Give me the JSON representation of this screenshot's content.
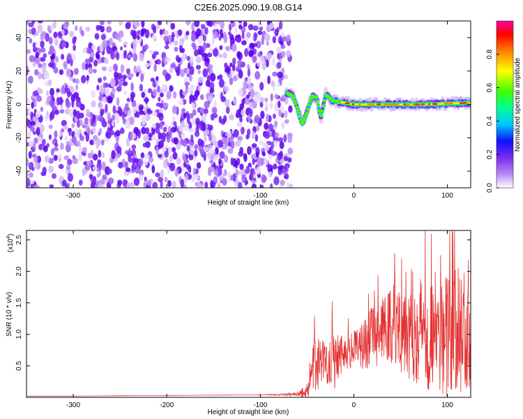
{
  "title": "C2E6.2025.090.19.08.G14",
  "colors": {
    "noise": "#7a2cf0",
    "snr_line": "#e33232"
  },
  "chart_data": [
    {
      "type": "heatmap",
      "xlabel": "Height of straight line (km)",
      "ylabel": "Frequency (Hz)",
      "xlim": [
        -350,
        125
      ],
      "ylim": [
        -50,
        50
      ],
      "xticks": [
        -300,
        -200,
        -100,
        0,
        100
      ],
      "yticks": [
        -40,
        -20,
        0,
        20,
        40
      ],
      "noise_region_x": [
        -350,
        -72
      ],
      "signal_trace": [
        {
          "x": -72,
          "y": 7
        },
        {
          "x": -65,
          "y": 5
        },
        {
          "x": -60,
          "y": -3
        },
        {
          "x": -55,
          "y": -12
        },
        {
          "x": -50,
          "y": -5
        },
        {
          "x": -45,
          "y": 5
        },
        {
          "x": -40,
          "y": 4
        },
        {
          "x": -35,
          "y": -8
        },
        {
          "x": -30,
          "y": 6
        },
        {
          "x": -25,
          "y": 3
        },
        {
          "x": -20,
          "y": 2
        },
        {
          "x": -10,
          "y": 1
        },
        {
          "x": 0,
          "y": 0
        },
        {
          "x": 25,
          "y": 0
        },
        {
          "x": 50,
          "y": 0
        },
        {
          "x": 75,
          "y": 0
        },
        {
          "x": 100,
          "y": 0.5
        },
        {
          "x": 125,
          "y": 1
        }
      ],
      "colorbar": {
        "label": "Normalized spectral amplitude",
        "ticks": [
          "0.0",
          "0.2",
          "0.4",
          "0.6",
          "0.8"
        ],
        "range": [
          0,
          1
        ]
      }
    },
    {
      "type": "line",
      "xlabel": "Height of straight line (km)",
      "ylabel": "SNR (10 * v/v)",
      "exponent_label": "(x10",
      "exponent_power": "4",
      "exponent_close": ")",
      "xlim": [
        -350,
        125
      ],
      "ylim": [
        0,
        2.65
      ],
      "xticks": [
        -300,
        -200,
        -100,
        0,
        100
      ],
      "yticks": [
        "0.5",
        "1.0",
        "1.5",
        "2.0",
        "2.5"
      ],
      "series": [
        {
          "x": [
            -350,
            -300,
            -200,
            -100,
            -60,
            -48,
            -45,
            -40,
            -35,
            -30,
            -25,
            -20,
            -15,
            -10,
            0,
            10,
            20,
            30,
            40,
            50,
            60,
            70,
            80,
            90,
            100,
            110,
            120,
            125
          ],
          "y": [
            0.02,
            0.02,
            0.03,
            0.04,
            0.05,
            0.1,
            0.4,
            0.55,
            0.6,
            0.55,
            0.6,
            0.7,
            0.7,
            0.72,
            0.75,
            0.85,
            0.95,
            1.05,
            1.15,
            1.2,
            1.15,
            1.1,
            1.05,
            1.0,
            1.0,
            1.05,
            1.1,
            1.15
          ],
          "spread": [
            0,
            0,
            0,
            0,
            0.03,
            0.15,
            0.35,
            0.5,
            0.35,
            0.35,
            0.4,
            0.6,
            0.35,
            0.3,
            0.3,
            0.4,
            0.5,
            0.5,
            0.7,
            0.8,
            0.9,
            0.9,
            1.0,
            1.0,
            1.0,
            1.0,
            1.1,
            1.1
          ]
        }
      ]
    }
  ]
}
